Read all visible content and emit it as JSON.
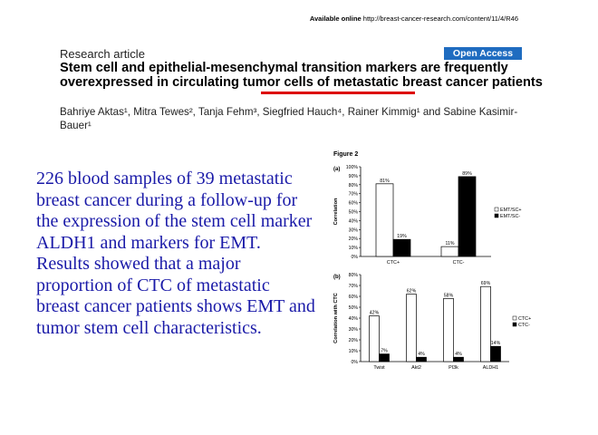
{
  "header": {
    "available_label": "Available online",
    "url": "http://breast-cancer-research.com/content/11/4/R46"
  },
  "article": {
    "type": "Research article",
    "open_access": "Open Access",
    "title": "Stem cell and epithelial-mesenchymal transition markers are frequently overexpressed in circulating tumor cells of metastatic breast cancer patients",
    "authors": "Bahriye Aktas¹, Mitra Tewes², Tanja Fehm³, Siegfried Hauch⁴, Rainer Kimmig¹ and Sabine Kasimir-Bauer¹"
  },
  "summary": {
    "para1": "226 blood samples of 39 metastatic breast cancer during a follow-up for the expression of the stem cell marker ALDH1 and markers for EMT.",
    "para2": "Results showed that a major proportion of CTC  of metastatic breast cancer patients shows EMT and tumor stem cell characteristics."
  },
  "figure": {
    "label": "Figure 2"
  },
  "chart_data": [
    {
      "panel": "(a)",
      "type": "bar",
      "ylabel": "Correlation",
      "ylim": [
        0,
        100
      ],
      "yticks": [
        "0%",
        "10%",
        "20%",
        "30%",
        "40%",
        "50%",
        "60%",
        "70%",
        "80%",
        "90%",
        "100%"
      ],
      "categories": [
        "CTC+",
        "CTC-"
      ],
      "series": [
        {
          "name": "EMT/SC+",
          "values": [
            81,
            11
          ],
          "labels": [
            "81%",
            "11%"
          ],
          "color": "#ffffff"
        },
        {
          "name": "EMT/SC-",
          "values": [
            19,
            89
          ],
          "labels": [
            "19%",
            "89%"
          ],
          "color": "#000000"
        }
      ],
      "legend": "right"
    },
    {
      "panel": "(b)",
      "type": "bar",
      "ylabel": "Correlation with CTC",
      "ylim": [
        0,
        80
      ],
      "yticks": [
        "0%",
        "10%",
        "20%",
        "30%",
        "40%",
        "50%",
        "60%",
        "70%",
        "80%"
      ],
      "categories": [
        "Twist",
        "Akt2",
        "PI3k",
        "ALDH1"
      ],
      "series": [
        {
          "name": "CTC+",
          "values": [
            42,
            62,
            58,
            69
          ],
          "labels": [
            "42%",
            "62%",
            "58%",
            "69%"
          ],
          "color": "#ffffff"
        },
        {
          "name": "CTC-",
          "values": [
            7,
            4,
            4,
            14
          ],
          "labels": [
            "7%",
            "4%",
            "4%",
            "14%"
          ],
          "color": "#000000"
        }
      ],
      "legend": "right"
    }
  ]
}
